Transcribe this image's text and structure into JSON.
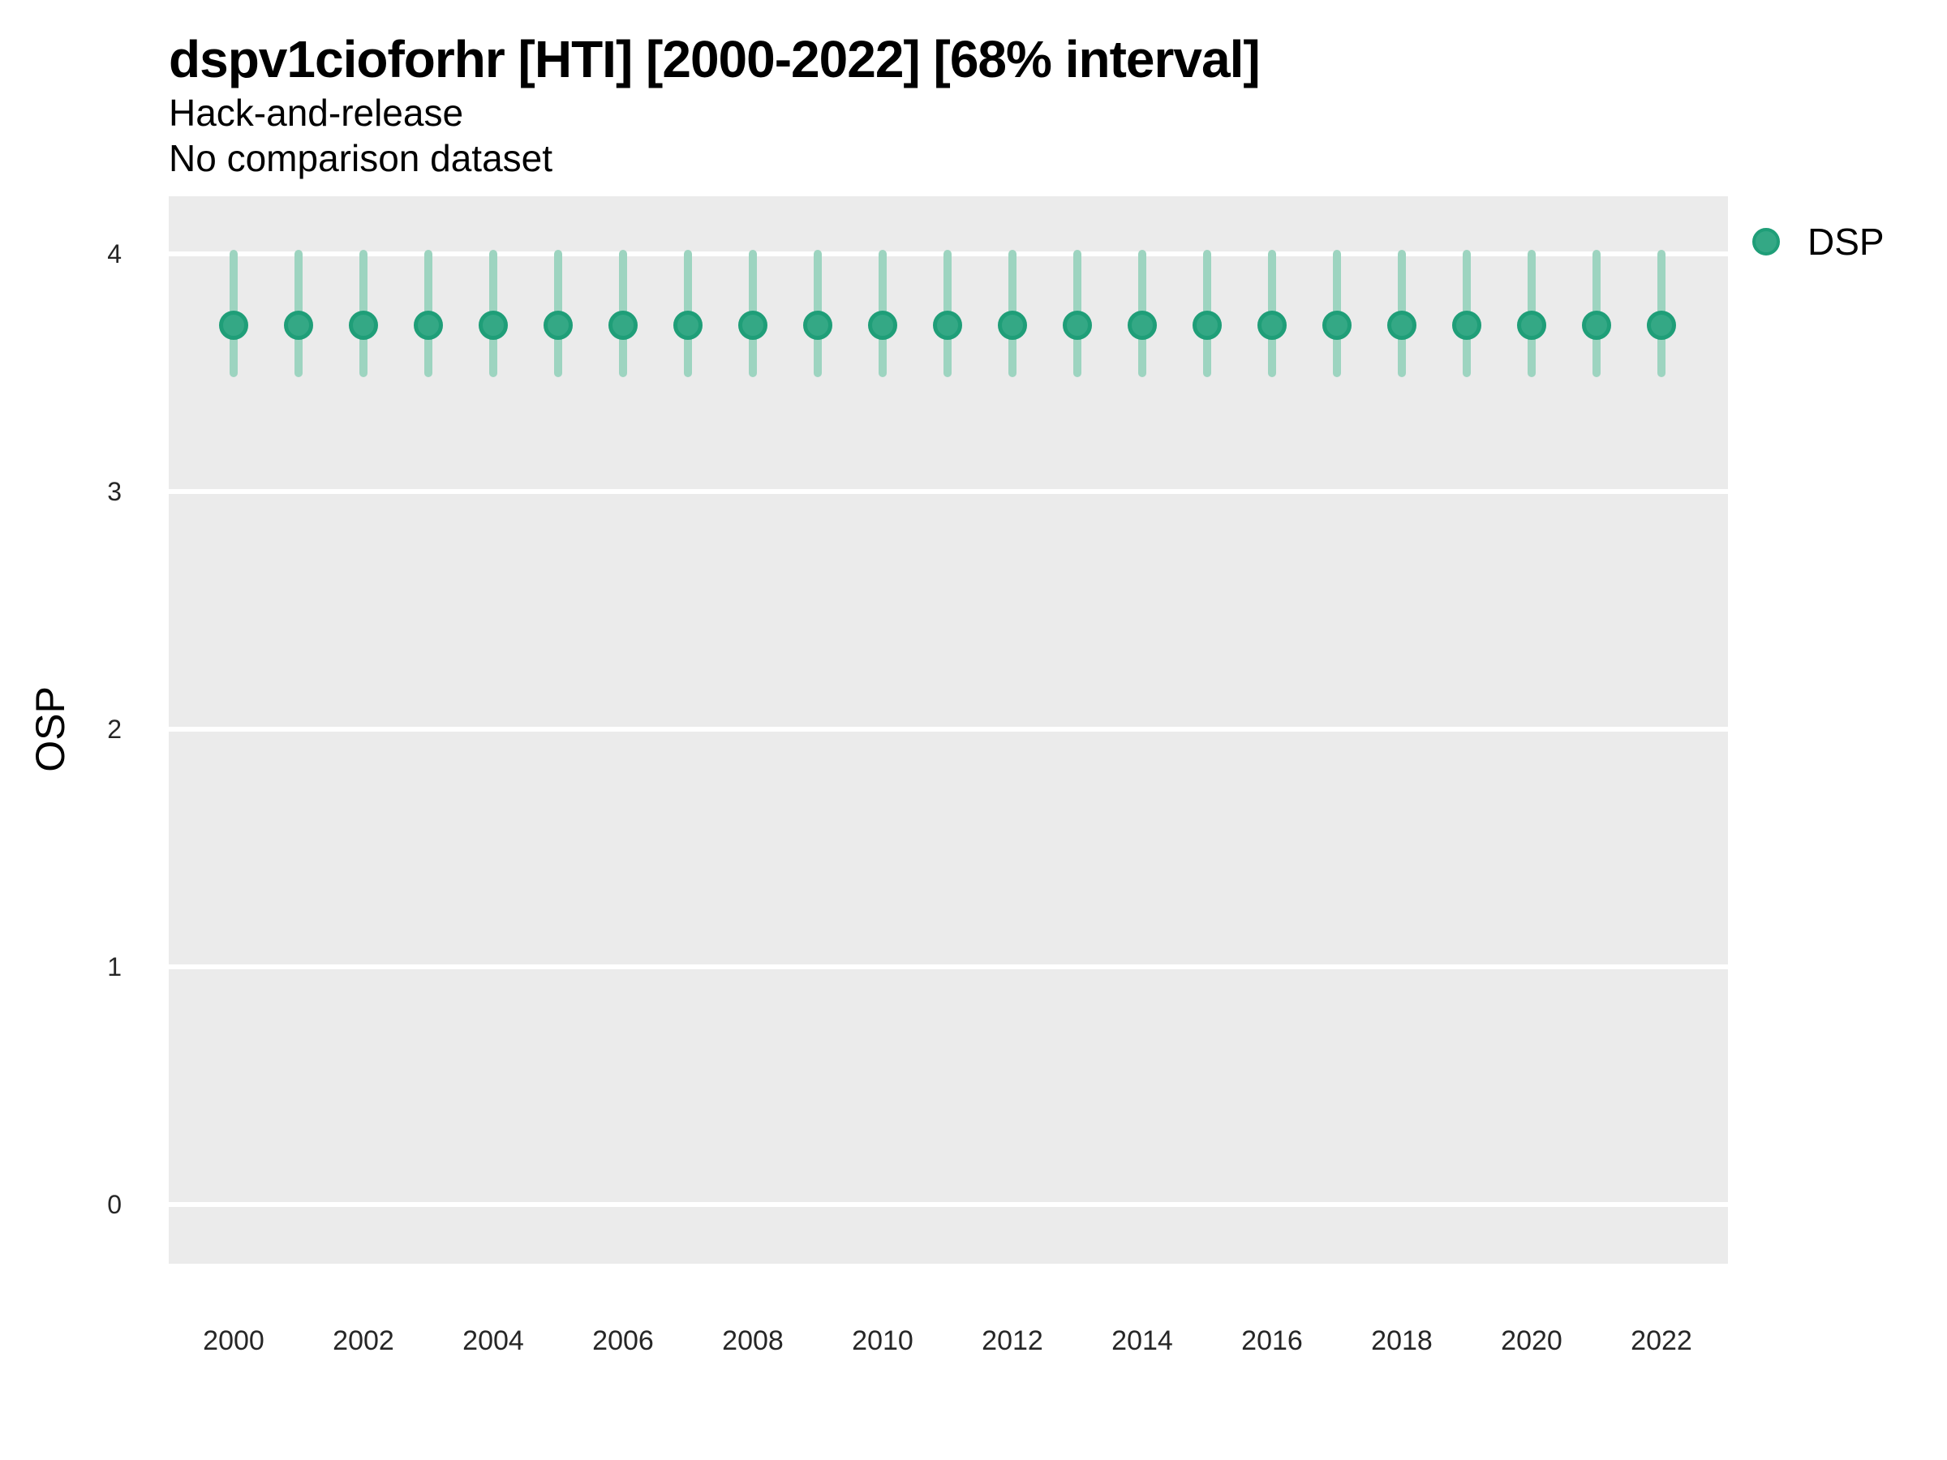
{
  "header": {
    "title": "dspv1cioforhr [HTI] [2000-2022] [68% interval]",
    "subtitle1": "Hack-and-release",
    "subtitle2": "No comparison dataset"
  },
  "legend": {
    "label": "DSP"
  },
  "chart_data": {
    "type": "scatter",
    "title": "dspv1cioforhr [HTI] [2000-2022] [68% interval]",
    "subtitle": [
      "Hack-and-release",
      "No comparison dataset"
    ],
    "xlabel": "",
    "ylabel": "OSP",
    "interval_label": "68% interval",
    "ylim": [
      -0.25,
      4.25
    ],
    "y_ticks": [
      0,
      1,
      2,
      3,
      4
    ],
    "x_tick_labels": [
      2000,
      2002,
      2004,
      2006,
      2008,
      2010,
      2012,
      2014,
      2016,
      2018,
      2020,
      2022
    ],
    "grid": "major-horizontal-white-on-gray",
    "legend_position": "right-top",
    "series": [
      {
        "name": "DSP",
        "x": [
          2000,
          2001,
          2002,
          2003,
          2004,
          2005,
          2006,
          2007,
          2008,
          2009,
          2010,
          2011,
          2012,
          2013,
          2014,
          2015,
          2016,
          2017,
          2018,
          2019,
          2020,
          2021,
          2022
        ],
        "y": [
          3.7,
          3.7,
          3.7,
          3.7,
          3.7,
          3.7,
          3.7,
          3.7,
          3.7,
          3.7,
          3.7,
          3.7,
          3.7,
          3.7,
          3.7,
          3.7,
          3.7,
          3.7,
          3.7,
          3.7,
          3.7,
          3.7,
          3.7
        ],
        "y_lo": [
          3.5,
          3.5,
          3.5,
          3.5,
          3.5,
          3.5,
          3.5,
          3.5,
          3.5,
          3.5,
          3.5,
          3.5,
          3.5,
          3.5,
          3.5,
          3.5,
          3.5,
          3.5,
          3.5,
          3.5,
          3.5,
          3.5,
          3.5
        ],
        "y_hi": [
          4.0,
          4.0,
          4.0,
          4.0,
          4.0,
          4.0,
          4.0,
          4.0,
          4.0,
          4.0,
          4.0,
          4.0,
          4.0,
          4.0,
          4.0,
          4.0,
          4.0,
          4.0,
          4.0,
          4.0,
          4.0,
          4.0,
          4.0
        ]
      }
    ],
    "colors": {
      "point_fill": "#34A885",
      "point_stroke": "#1F9E78",
      "interval_bar": "#9DD4C0",
      "panel_background": "#EBEBEB",
      "gridline": "#FFFFFF",
      "tick_text": "#262626",
      "title_text": "#000000"
    }
  }
}
